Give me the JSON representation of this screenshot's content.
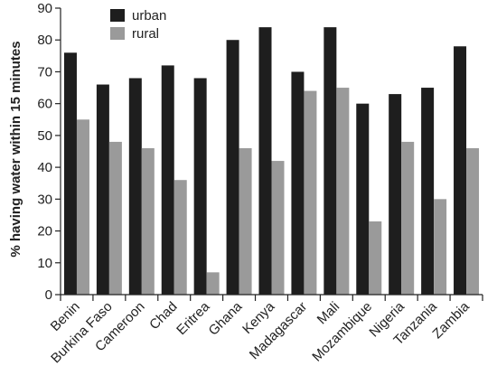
{
  "chart_data": {
    "type": "bar",
    "title": "",
    "xlabel": "",
    "ylabel": "% having water within 15 minutes",
    "ylim": [
      0,
      90
    ],
    "yticks": [
      0,
      10,
      20,
      30,
      40,
      50,
      60,
      70,
      80,
      90
    ],
    "grid": false,
    "legend_position": "top-left",
    "categories": [
      "Benin",
      "Burkina Faso",
      "Cameroon",
      "Chad",
      "Eritrea",
      "Ghana",
      "Kenya",
      "Madagascar",
      "Mali",
      "Mozambique",
      "Nigeria",
      "Tanzania",
      "Zambia"
    ],
    "series": [
      {
        "name": "urban",
        "color": "#1e1e1e",
        "values": [
          76,
          66,
          68,
          72,
          68,
          80,
          84,
          70,
          84,
          60,
          63,
          65,
          78
        ]
      },
      {
        "name": "rural",
        "color": "#9a9a9a",
        "values": [
          55,
          48,
          46,
          36,
          7,
          46,
          42,
          64,
          65,
          23,
          48,
          30,
          46
        ]
      }
    ]
  }
}
